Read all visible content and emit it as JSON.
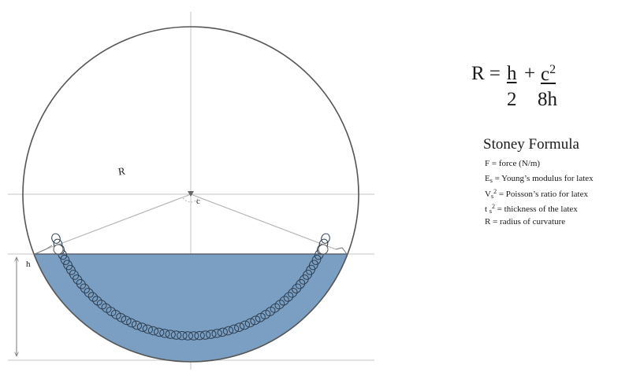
{
  "diagram": {
    "labels": {
      "radius": "R",
      "chord_half": "c",
      "height": "h"
    },
    "colors": {
      "fill": "#7a9fc2",
      "circle_stroke": "#555555",
      "guide_line": "#c0c0c0",
      "bead_stroke": "#2e3e52"
    }
  },
  "formula": {
    "lhs": "R =",
    "term1_num": "h",
    "plus": "+",
    "term2_num": "c",
    "term2_sup": "2",
    "term1_den": "2",
    "term2_den": "8h"
  },
  "legend": {
    "title": "Stoney Formula",
    "items": [
      {
        "symbol": "F",
        "sub": "",
        "sup": "",
        "text": "= force (N/m)"
      },
      {
        "symbol": "E",
        "sub": "s",
        "sup": "",
        "text": "= Young’s modulus for latex"
      },
      {
        "symbol": "V",
        "sub": "s",
        "sup": "2",
        "text": "= Poisson’s ratio for latex"
      },
      {
        "symbol": "t",
        "sub": "s",
        "sup": "2",
        "text": "= thickness of the latex"
      },
      {
        "symbol": "R",
        "sub": "",
        "sup": "",
        "text": "= radius of curvature"
      }
    ]
  }
}
